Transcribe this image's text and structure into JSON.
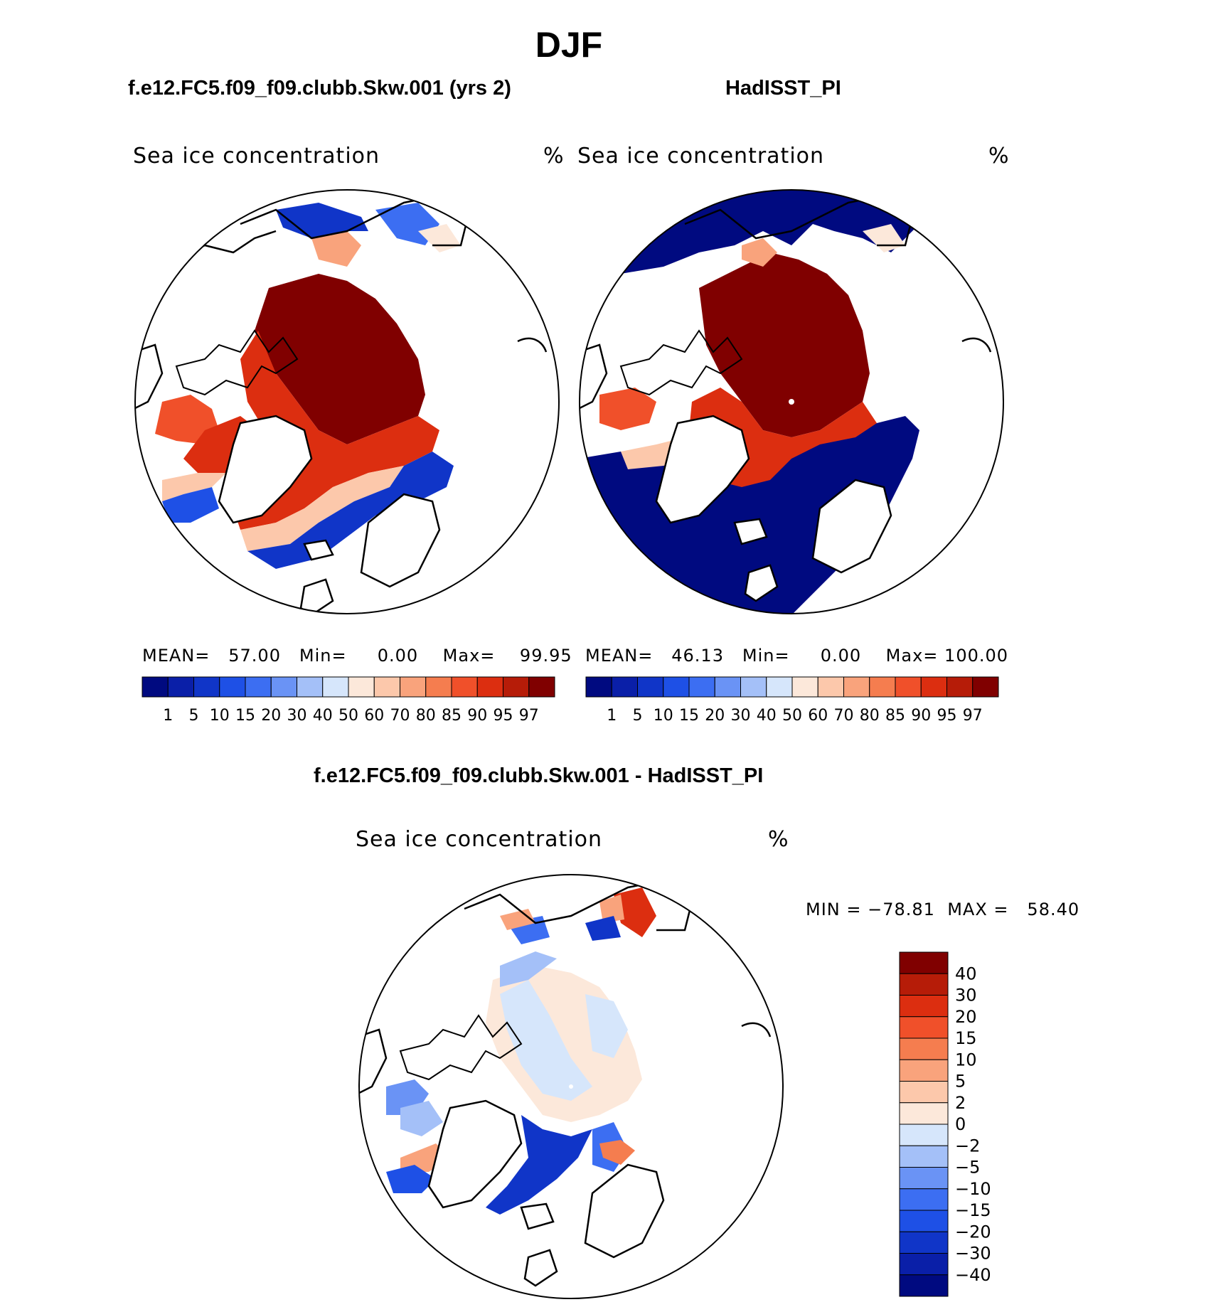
{
  "page": {
    "title": "DJF"
  },
  "panels": [
    {
      "header": "f.e12.FC5.f09_f09.clubb.Skw.001 (yrs 2)",
      "field_label": "Sea ice concentration",
      "units": "%",
      "stats": {
        "mean_label": "MEAN=",
        "mean": "57.00",
        "min_label": "Min=",
        "min": "0.00",
        "max_label": "Max=",
        "max": "99.95"
      }
    },
    {
      "header": "HadISST_PI",
      "field_label": "Sea ice concentration",
      "units": "%",
      "stats": {
        "mean_label": "MEAN=",
        "mean": "46.13",
        "min_label": "Min=",
        "min": "0.00",
        "max_label": "Max=",
        "max": "100.00"
      }
    }
  ],
  "abs_colorbar": {
    "labels": [
      "1",
      "5",
      "10",
      "15",
      "20",
      "30",
      "40",
      "50",
      "60",
      "70",
      "80",
      "85",
      "90",
      "95",
      "97"
    ],
    "colors": [
      "#000a80",
      "#0a1fa8",
      "#1035c8",
      "#1e50e6",
      "#3c6ef2",
      "#6a93f5",
      "#a4c0f8",
      "#d6e6fb",
      "#fce8da",
      "#fcc8ab",
      "#f9a37c",
      "#f57d4f",
      "#f0502a",
      "#dc2e10",
      "#b61c08",
      "#800000"
    ]
  },
  "diff_panel": {
    "header": "f.e12.FC5.f09_f09.clubb.Skw.001 - HadISST_PI",
    "field_label": "Sea ice concentration",
    "units": "%",
    "stats": {
      "min_label": "MIN =",
      "min": "−78.81",
      "max_label": "MAX =",
      "max": "58.40"
    }
  },
  "diff_colorbar": {
    "labels": [
      "40",
      "30",
      "20",
      "15",
      "10",
      "5",
      "2",
      "0",
      "−2",
      "−5",
      "−10",
      "−15",
      "−20",
      "−30",
      "−40"
    ],
    "colors": [
      "#800000",
      "#b61c08",
      "#dc2e10",
      "#f0502a",
      "#f57d4f",
      "#f9a37c",
      "#fcc8ab",
      "#fce8da",
      "#d6e6fb",
      "#a4c0f8",
      "#6a93f5",
      "#3c6ef2",
      "#1e50e6",
      "#1035c8",
      "#0a1fa8",
      "#000a80"
    ]
  }
}
